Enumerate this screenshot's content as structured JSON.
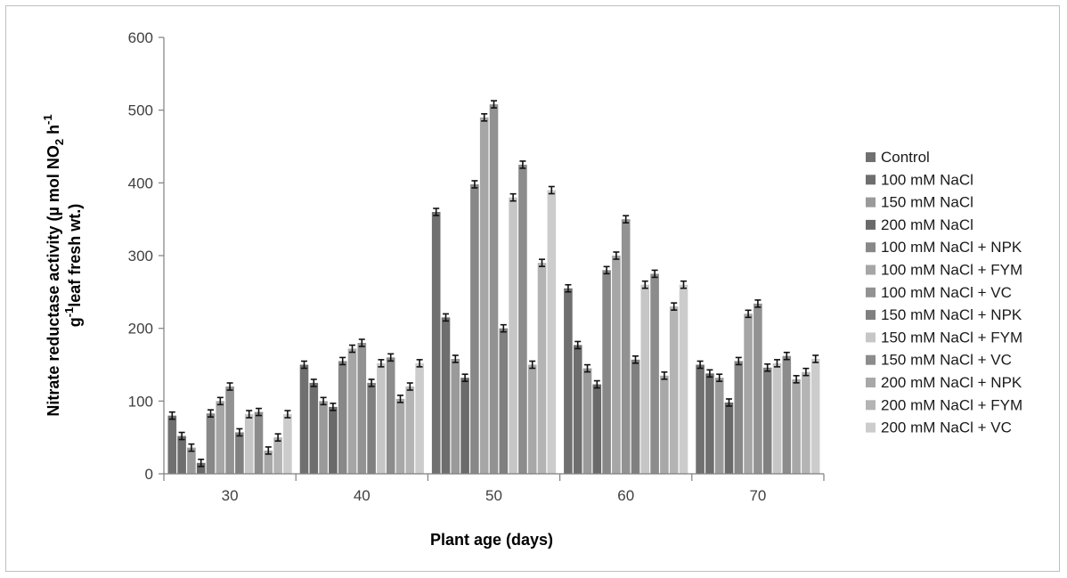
{
  "chart_data": {
    "type": "bar",
    "xlabel": "Plant age (days)",
    "ylabel_line1": "Nitrate reductase activity (µ mol NO",
    "ylabel_sub": "2",
    "ylabel_line1_end": " h",
    "ylabel_sup": "-1",
    "ylabel_line2_sup": "-1",
    "ylabel_line2": "g",
    "ylabel_line2_rest": "leaf fresh wt.)",
    "ylim": [
      0,
      600
    ],
    "yticks": [
      "0",
      "100",
      "200",
      "300",
      "400",
      "500",
      "600"
    ],
    "categories": [
      "30",
      "40",
      "50",
      "60",
      "70"
    ],
    "legend_position": "right",
    "grid": false,
    "series": [
      {
        "name": "Control",
        "color": "#707070",
        "values": [
          80,
          150,
          360,
          255,
          150
        ]
      },
      {
        "name": "100 mM NaCl",
        "color": "#6e6e6e",
        "values": [
          52,
          125,
          215,
          177,
          138
        ]
      },
      {
        "name": "150 mM NaCl",
        "color": "#9a9a9a",
        "values": [
          36,
          100,
          158,
          145,
          132
        ]
      },
      {
        "name": "200 mM NaCl",
        "color": "#6a6a6a",
        "values": [
          15,
          92,
          132,
          123,
          98
        ]
      },
      {
        "name": "100 mM NaCl + NPK",
        "color": "#888888",
        "values": [
          83,
          155,
          398,
          280,
          155
        ]
      },
      {
        "name": "100 mM NaCl + FYM",
        "color": "#a6a6a6",
        "values": [
          100,
          172,
          490,
          300,
          220
        ]
      },
      {
        "name": "100 mM NaCl + VC",
        "color": "#929292",
        "values": [
          120,
          180,
          508,
          350,
          234
        ]
      },
      {
        "name": "150 mM NaCl + NPK",
        "color": "#808080",
        "values": [
          57,
          125,
          200,
          157,
          146
        ]
      },
      {
        "name": "150 mM NaCl + FYM",
        "color": "#c6c6c6",
        "values": [
          82,
          152,
          380,
          260,
          152
        ]
      },
      {
        "name": "150 mM NaCl + VC",
        "color": "#8c8c8c",
        "values": [
          85,
          160,
          425,
          275,
          162
        ]
      },
      {
        "name": "200 mM NaCl + NPK",
        "color": "#a8a8a8",
        "values": [
          32,
          103,
          150,
          135,
          130
        ]
      },
      {
        "name": "200 mM NaCl + FYM",
        "color": "#b4b4b4",
        "values": [
          50,
          120,
          290,
          230,
          140
        ]
      },
      {
        "name": "200 mM NaCl + VC",
        "color": "#cccccc",
        "values": [
          82,
          152,
          390,
          260,
          158
        ]
      }
    ]
  }
}
